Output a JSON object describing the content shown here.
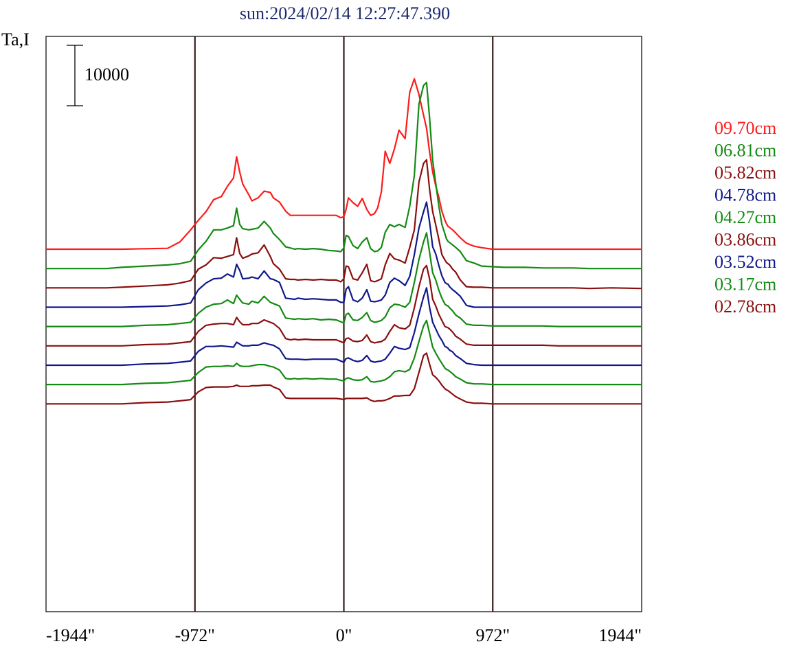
{
  "chart_data": {
    "type": "line",
    "title": "sun:2024/02/14 12:27:47.390",
    "ylabel": "Ta,I",
    "scale_bar_label": "10000",
    "xlim": [
      -1944,
      1944
    ],
    "xticks": [
      {
        "value": -1944,
        "label": "-1944\""
      },
      {
        "value": -972,
        "label": "-972\""
      },
      {
        "value": 0,
        "label": "0\""
      },
      {
        "value": 972,
        "label": "972\""
      },
      {
        "value": 1944,
        "label": "1944\""
      }
    ],
    "vlines": [
      -972,
      0,
      972
    ],
    "x": [
      -1944,
      -1750,
      -1550,
      -1450,
      -1300,
      -1150,
      -1070,
      -1000,
      -950,
      -900,
      -850,
      -800,
      -760,
      -720,
      -700,
      -680,
      -660,
      -620,
      -600,
      -560,
      -520,
      -480,
      -460,
      -420,
      -380,
      -350,
      -320,
      -300,
      -250,
      -200,
      -150,
      -100,
      -50,
      -20,
      0,
      15,
      30,
      60,
      90,
      120,
      150,
      175,
      200,
      220,
      245,
      270,
      300,
      330,
      360,
      400,
      430,
      460,
      490,
      520,
      540,
      560,
      580,
      600,
      620,
      640,
      660,
      670,
      680,
      690,
      710,
      730,
      760,
      800,
      850,
      900,
      972,
      1050,
      1100,
      1180,
      1300,
      1400,
      1500,
      1600,
      1750,
      1944
    ],
    "series": [
      {
        "name": "09.70cm",
        "color": "#ff1a1a",
        "baseline": 0,
        "amp": [
          0,
          0,
          0,
          0,
          80,
          150,
          1200,
          3200,
          4800,
          6200,
          8200,
          8700,
          10400,
          11800,
          15300,
          12800,
          10800,
          9000,
          8000,
          8500,
          9600,
          9400,
          8500,
          7800,
          6300,
          5600,
          5600,
          5600,
          5600,
          5600,
          5600,
          5600,
          5600,
          5200,
          5400,
          6600,
          8500,
          7700,
          7100,
          8400,
          6600,
          5600,
          5900,
          6800,
          9500,
          16200,
          14200,
          16600,
          19700,
          18300,
          26000,
          28200,
          25600,
          22200,
          20000,
          16000,
          12800,
          10500,
          8600,
          6300,
          4800,
          4200,
          3800,
          3600,
          3200,
          2700,
          1900,
          1000,
          500,
          250,
          0,
          0,
          0,
          0,
          0,
          0,
          0,
          0,
          0,
          0
        ]
      },
      {
        "name": "06.81cm",
        "color": "#138a13",
        "baseline": -1,
        "amp": [
          0,
          0,
          0,
          200,
          400,
          600,
          800,
          1200,
          3100,
          4500,
          6400,
          6400,
          6700,
          7100,
          10000,
          7300,
          6600,
          6400,
          6500,
          6700,
          7800,
          6700,
          5800,
          4800,
          3600,
          3400,
          3200,
          3300,
          3200,
          3300,
          3200,
          3000,
          2900,
          2800,
          3400,
          5500,
          5300,
          3800,
          3300,
          4400,
          5100,
          3300,
          2800,
          2900,
          3500,
          6000,
          7300,
          6900,
          7300,
          6800,
          10300,
          15400,
          27200,
          30300,
          30800,
          24800,
          17900,
          14100,
          10300,
          7300,
          5700,
          4900,
          4500,
          4300,
          3900,
          3500,
          2800,
          1300,
          900,
          400,
          300,
          200,
          200,
          200,
          100,
          100,
          100,
          0,
          0,
          0
        ]
      },
      {
        "name": "05.82cm",
        "color": "#8a0e0e",
        "baseline": -2,
        "amp": [
          0,
          0,
          0,
          100,
          300,
          500,
          800,
          1200,
          3100,
          3800,
          5000,
          4900,
          5200,
          5500,
          8300,
          5700,
          4900,
          5300,
          5600,
          5800,
          7100,
          5200,
          4000,
          3100,
          1500,
          1400,
          1400,
          1300,
          1400,
          1300,
          1400,
          1300,
          1300,
          1000,
          1500,
          3600,
          3500,
          1500,
          1300,
          2500,
          3900,
          1200,
          1000,
          1200,
          1500,
          3800,
          5700,
          4800,
          4600,
          4100,
          6700,
          9600,
          17500,
          20600,
          21200,
          16200,
          12600,
          10400,
          8000,
          5500,
          4600,
          4200,
          4000,
          3800,
          3100,
          2600,
          1300,
          200,
          100,
          100,
          0,
          0,
          0,
          0,
          0,
          0,
          0,
          -100,
          0,
          -100
        ]
      },
      {
        "name": "04.78cm",
        "color": "#10178a",
        "baseline": -3,
        "amp": [
          0,
          0,
          0,
          0,
          100,
          200,
          400,
          700,
          2900,
          4000,
          4700,
          4800,
          5500,
          5000,
          7100,
          6100,
          4700,
          4800,
          5000,
          4700,
          6000,
          4700,
          4600,
          4100,
          1500,
          1400,
          1300,
          1500,
          1300,
          1400,
          1300,
          1200,
          1200,
          800,
          800,
          3000,
          3400,
          1200,
          900,
          1500,
          2900,
          1000,
          900,
          1000,
          1200,
          2000,
          4100,
          4800,
          4400,
          3600,
          5100,
          8700,
          13100,
          15800,
          17400,
          14000,
          10000,
          8800,
          6900,
          5200,
          4100,
          3900,
          3800,
          3400,
          2900,
          2500,
          1800,
          300,
          0,
          0,
          0,
          0,
          0,
          0,
          0,
          0,
          0,
          0,
          0,
          0
        ]
      },
      {
        "name": "04.27cm",
        "color": "#138a13",
        "baseline": -4,
        "amp": [
          0,
          0,
          0,
          0,
          200,
          300,
          500,
          700,
          2200,
          3200,
          3700,
          3800,
          4400,
          3800,
          5200,
          4500,
          3900,
          3700,
          4200,
          3900,
          5000,
          4000,
          3800,
          3400,
          1400,
          1300,
          1200,
          1300,
          1200,
          1300,
          1100,
          1200,
          1100,
          800,
          600,
          2000,
          2200,
          1100,
          1000,
          1500,
          2300,
          1000,
          700,
          800,
          1000,
          1600,
          3100,
          3700,
          3600,
          3200,
          4000,
          7300,
          11100,
          14000,
          15500,
          12200,
          8900,
          7700,
          6000,
          4700,
          3700,
          3500,
          3400,
          3100,
          2600,
          1900,
          1400,
          400,
          200,
          200,
          100,
          100,
          100,
          100,
          100,
          0,
          0,
          0,
          0,
          0
        ]
      },
      {
        "name": "03.86cm",
        "color": "#8a0e0e",
        "baseline": -5,
        "amp": [
          0,
          0,
          0,
          0,
          200,
          300,
          500,
          700,
          2400,
          3400,
          3600,
          3700,
          3700,
          3500,
          4700,
          4000,
          3500,
          3500,
          3700,
          3700,
          4300,
          3900,
          3700,
          2900,
          1200,
          1000,
          1100,
          1000,
          1100,
          1000,
          1000,
          1000,
          1000,
          700,
          500,
          1200,
          1300,
          800,
          700,
          900,
          1800,
          700,
          500,
          600,
          700,
          1100,
          2400,
          3500,
          3000,
          2800,
          3400,
          6300,
          9800,
          12700,
          13300,
          11000,
          7700,
          6600,
          5200,
          4200,
          3200,
          3100,
          3000,
          2800,
          2300,
          1600,
          1100,
          300,
          100,
          100,
          100,
          100,
          100,
          100,
          100,
          0,
          0,
          0,
          0,
          0
        ]
      },
      {
        "name": "03.52cm",
        "color": "#10178a",
        "baseline": -6,
        "amp": [
          0,
          0,
          0,
          0,
          200,
          300,
          500,
          700,
          2300,
          3100,
          3100,
          3200,
          3100,
          3000,
          3800,
          3500,
          3200,
          3200,
          3300,
          3300,
          3700,
          3400,
          3300,
          2700,
          1100,
          1000,
          1000,
          1000,
          900,
          1000,
          1000,
          1000,
          1000,
          700,
          500,
          1100,
          1200,
          800,
          600,
          800,
          1600,
          700,
          500,
          600,
          700,
          1000,
          2000,
          3100,
          2800,
          2600,
          2900,
          5400,
          8500,
          11300,
          12800,
          9500,
          7100,
          6000,
          4900,
          4100,
          3100,
          3000,
          2800,
          2500,
          2200,
          1600,
          1100,
          300,
          100,
          0,
          0,
          0,
          0,
          0,
          0,
          0,
          0,
          0,
          0,
          0
        ]
      },
      {
        "name": "03.17cm",
        "color": "#138a13",
        "baseline": -7,
        "amp": [
          0,
          0,
          0,
          0,
          200,
          300,
          500,
          700,
          2000,
          2900,
          3000,
          3000,
          3100,
          3000,
          3500,
          3100,
          3000,
          3000,
          3100,
          3300,
          3300,
          3000,
          2900,
          2400,
          1000,
          900,
          1000,
          900,
          1000,
          900,
          1000,
          900,
          900,
          700,
          600,
          1000,
          1100,
          800,
          700,
          800,
          1300,
          500,
          400,
          500,
          600,
          800,
          1300,
          2100,
          2300,
          2100,
          2500,
          4400,
          7100,
          9700,
          10600,
          8400,
          6200,
          5200,
          4300,
          3500,
          2700,
          2500,
          2400,
          2200,
          1800,
          1300,
          900,
          300,
          100,
          100,
          0,
          0,
          0,
          0,
          0,
          0,
          0,
          0,
          0,
          0
        ]
      },
      {
        "name": "02.78cm",
        "color": "#8a0e0e",
        "baseline": -8,
        "amp": [
          0,
          0,
          0,
          0,
          200,
          300,
          500,
          700,
          2000,
          2700,
          2800,
          2800,
          2800,
          2900,
          3100,
          2900,
          2900,
          2900,
          3000,
          3000,
          3100,
          3100,
          2800,
          2400,
          1000,
          900,
          900,
          900,
          900,
          900,
          900,
          900,
          900,
          800,
          700,
          900,
          900,
          900,
          900,
          900,
          1000,
          600,
          400,
          500,
          500,
          600,
          900,
          1300,
          1300,
          1400,
          1400,
          2500,
          5200,
          8000,
          8400,
          6500,
          4800,
          4400,
          3800,
          3100,
          2500,
          2300,
          2200,
          2000,
          1600,
          1200,
          800,
          300,
          100,
          100,
          0,
          0,
          0,
          0,
          0,
          0,
          0,
          0,
          0,
          0
        ]
      }
    ],
    "baseline_spacing": 3200
  }
}
